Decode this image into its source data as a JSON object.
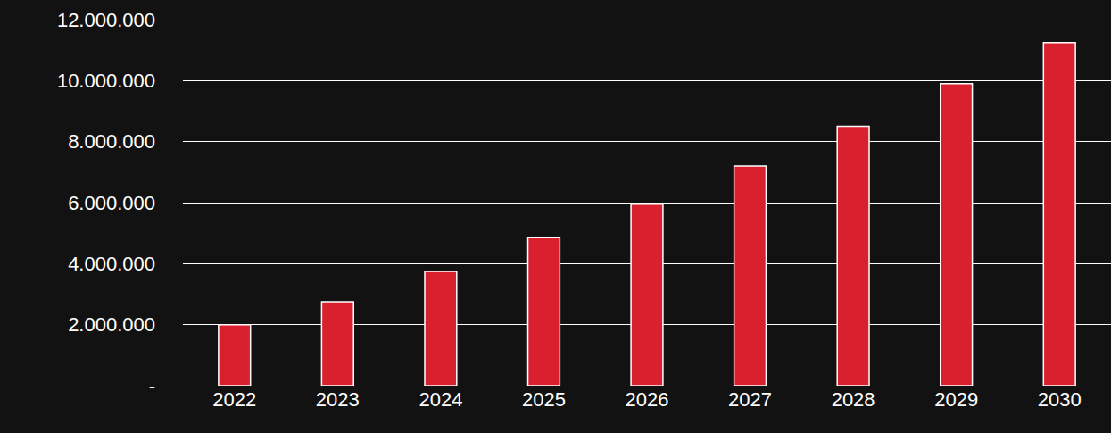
{
  "chart_data": {
    "type": "bar",
    "categories": [
      "2022",
      "2023",
      "2024",
      "2025",
      "2026",
      "2027",
      "2028",
      "2029",
      "2030"
    ],
    "values": [
      2000000,
      2750000,
      3750000,
      4850000,
      5950000,
      7200000,
      8500000,
      9900000,
      11250000
    ],
    "color": "#d9202e",
    "ylim": [
      0,
      12000000
    ],
    "yticks": [
      {
        "value": 0,
        "label": "-"
      },
      {
        "value": 2000000,
        "label": "2.000.000"
      },
      {
        "value": 4000000,
        "label": "4.000.000"
      },
      {
        "value": 6000000,
        "label": "6.000.000"
      },
      {
        "value": 8000000,
        "label": "8.000.000"
      },
      {
        "value": 10000000,
        "label": "10.000.000"
      },
      {
        "value": 12000000,
        "label": "12.000.000"
      }
    ],
    "grid": true
  }
}
